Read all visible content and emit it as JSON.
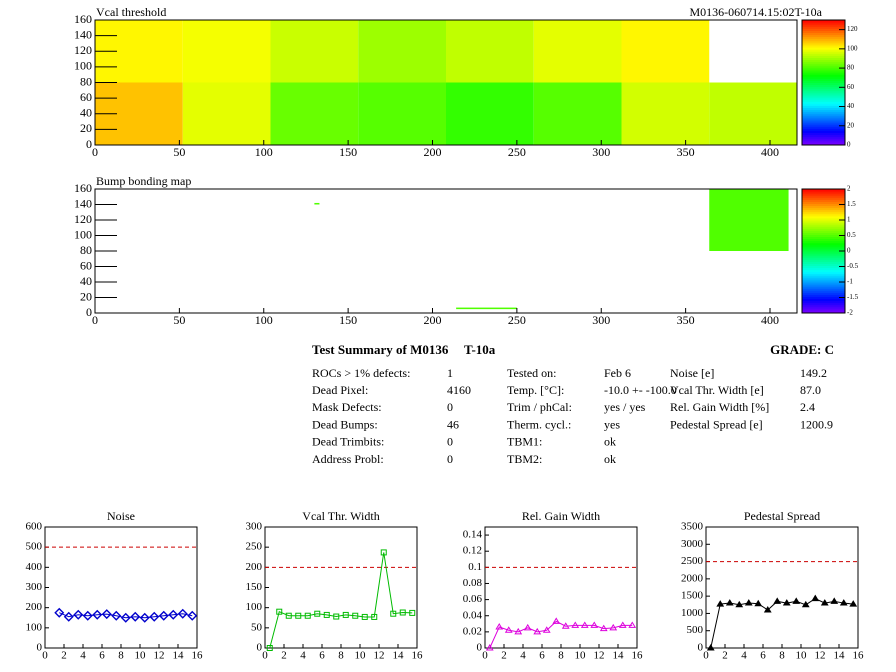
{
  "chart_data": [
    {
      "type": "heatmap",
      "title": "Vcal threshold",
      "subtitle": "M0136-060714.15:02T-10a",
      "xlim": [
        0,
        416
      ],
      "xticks": [
        0,
        50,
        100,
        150,
        200,
        250,
        300,
        350,
        400
      ],
      "ylim": [
        0,
        160
      ],
      "yticks": [
        0,
        20,
        40,
        60,
        80,
        100,
        120,
        140,
        160
      ],
      "zlim": [
        0,
        130
      ],
      "zticks": [
        0,
        20,
        40,
        60,
        80,
        100,
        120
      ],
      "cells": [
        {
          "x0": 0,
          "x1": 52,
          "y0": 0,
          "y1": 80,
          "value": 108
        },
        {
          "x0": 52,
          "x1": 104,
          "y0": 0,
          "y1": 80,
          "value": 98
        },
        {
          "x0": 104,
          "x1": 156,
          "y0": 0,
          "y1": 80,
          "value": 84
        },
        {
          "x0": 156,
          "x1": 208,
          "y0": 0,
          "y1": 80,
          "value": 82
        },
        {
          "x0": 208,
          "x1": 260,
          "y0": 0,
          "y1": 80,
          "value": 78
        },
        {
          "x0": 260,
          "x1": 312,
          "y0": 0,
          "y1": 80,
          "value": 82
        },
        {
          "x0": 312,
          "x1": 364,
          "y0": 0,
          "y1": 80,
          "value": 96
        },
        {
          "x0": 364,
          "x1": 416,
          "y0": 0,
          "y1": 80,
          "value": 94
        },
        {
          "x0": 0,
          "x1": 52,
          "y0": 80,
          "y1": 160,
          "value": 102
        },
        {
          "x0": 52,
          "x1": 104,
          "y0": 80,
          "y1": 160,
          "value": 100
        },
        {
          "x0": 104,
          "x1": 156,
          "y0": 80,
          "y1": 160,
          "value": 95
        },
        {
          "x0": 156,
          "x1": 208,
          "y0": 80,
          "y1": 160,
          "value": 90
        },
        {
          "x0": 208,
          "x1": 260,
          "y0": 80,
          "y1": 160,
          "value": 94
        },
        {
          "x0": 260,
          "x1": 312,
          "y0": 80,
          "y1": 160,
          "value": 98
        },
        {
          "x0": 312,
          "x1": 364,
          "y0": 80,
          "y1": 160,
          "value": 102
        }
      ]
    },
    {
      "type": "heatmap",
      "title": "Bump bonding map",
      "xlim": [
        0,
        416
      ],
      "xticks": [
        0,
        50,
        100,
        150,
        200,
        250,
        300,
        350,
        400
      ],
      "ylim": [
        0,
        160
      ],
      "yticks": [
        0,
        20,
        40,
        60,
        80,
        100,
        120,
        140,
        160
      ],
      "zlim": [
        -2,
        2
      ],
      "zticks": [
        -2,
        -1.5,
        -1,
        -0.5,
        0,
        0.5,
        1,
        1.5,
        2
      ],
      "cells": [
        {
          "x0": 364,
          "x1": 411,
          "y0": 80,
          "y1": 160,
          "value": 0.5
        },
        {
          "x0": 130,
          "x1": 133,
          "y0": 140,
          "y1": 142,
          "value": 0.5
        },
        {
          "x0": 214,
          "x1": 250,
          "y0": 5,
          "y1": 7,
          "value": 0.5
        }
      ]
    },
    {
      "type": "line",
      "title": "Noise",
      "xlim": [
        0,
        16
      ],
      "xticks": [
        0,
        2,
        4,
        6,
        8,
        10,
        12,
        14,
        16
      ],
      "ylim": [
        0,
        600
      ],
      "yticks": [
        0,
        100,
        200,
        300,
        400,
        500,
        600
      ],
      "threshold": 500,
      "x": [
        1.5,
        2.5,
        3.5,
        4.5,
        5.5,
        6.5,
        7.5,
        8.5,
        9.5,
        10.5,
        11.5,
        12.5,
        13.5,
        14.5,
        15.5
      ],
      "values": [
        175,
        155,
        165,
        160,
        165,
        168,
        160,
        150,
        155,
        150,
        155,
        160,
        165,
        170,
        160
      ],
      "color": "#0000cc",
      "marker": "diamond"
    },
    {
      "type": "line",
      "title": "Vcal Thr. Width",
      "xlim": [
        0,
        16
      ],
      "xticks": [
        0,
        2,
        4,
        6,
        8,
        10,
        12,
        14,
        16
      ],
      "ylim": [
        0,
        300
      ],
      "yticks": [
        0,
        50,
        100,
        150,
        200,
        250,
        300
      ],
      "threshold": 200,
      "x": [
        0.5,
        1.5,
        2.5,
        3.5,
        4.5,
        5.5,
        6.5,
        7.5,
        8.5,
        9.5,
        10.5,
        11.5,
        12.5,
        13.5,
        14.5,
        15.5
      ],
      "values": [
        0,
        90,
        80,
        80,
        80,
        85,
        82,
        78,
        82,
        80,
        77,
        77,
        237,
        85,
        88,
        87
      ],
      "color": "#00bb00",
      "marker": "square"
    },
    {
      "type": "line",
      "title": "Rel. Gain Width",
      "xlim": [
        0,
        16
      ],
      "xticks": [
        0,
        2,
        4,
        6,
        8,
        10,
        12,
        14,
        16
      ],
      "ylim": [
        0,
        0.15
      ],
      "yticks": [
        0,
        0.02,
        0.04,
        0.06,
        0.08,
        0.1,
        0.12,
        0.14
      ],
      "threshold": 0.1,
      "x": [
        0.5,
        1.5,
        2.5,
        3.5,
        4.5,
        5.5,
        6.5,
        7.5,
        8.5,
        9.5,
        10.5,
        11.5,
        12.5,
        13.5,
        14.5,
        15.5
      ],
      "values": [
        0,
        0.026,
        0.022,
        0.02,
        0.025,
        0.02,
        0.022,
        0.033,
        0.027,
        0.028,
        0.028,
        0.028,
        0.024,
        0.025,
        0.028,
        0.028
      ],
      "color": "#dd00dd",
      "marker": "triangle"
    },
    {
      "type": "line",
      "title": "Pedestal Spread",
      "xlim": [
        0,
        16
      ],
      "xticks": [
        0,
        2,
        4,
        6,
        8,
        10,
        12,
        14,
        16
      ],
      "ylim": [
        0,
        3500
      ],
      "yticks": [
        0,
        500,
        1000,
        1500,
        2000,
        2500,
        3000,
        3500
      ],
      "threshold": 2500,
      "x": [
        0.5,
        1.5,
        2.5,
        3.5,
        4.5,
        5.5,
        6.5,
        7.5,
        8.5,
        9.5,
        10.5,
        11.5,
        12.5,
        13.5,
        14.5,
        15.5
      ],
      "values": [
        0,
        1270,
        1300,
        1250,
        1300,
        1280,
        1100,
        1350,
        1300,
        1350,
        1250,
        1430,
        1300,
        1350,
        1300,
        1270
      ],
      "color": "#000000",
      "marker": "star"
    }
  ],
  "summary": {
    "title": "Test Summary of M0136",
    "test": "T-10a",
    "grade": "GRADE:  C",
    "columns": [
      [
        [
          "ROCs > 1% defects:",
          "1"
        ],
        [
          "Dead Pixel:",
          "4160"
        ],
        [
          "Mask Defects:",
          "0"
        ],
        [
          "Dead Bumps:",
          "46"
        ],
        [
          "Dead Trimbits:",
          "0"
        ],
        [
          "Address Probl:",
          "0"
        ]
      ],
      [
        [
          "Tested on:",
          "Feb 6"
        ],
        [
          "Temp. [°C]:",
          "-10.0 +- -100.0"
        ],
        [
          "Trim / phCal:",
          "yes / yes"
        ],
        [
          "Therm. cycl.:",
          "yes"
        ],
        [
          "TBM1:",
          "ok"
        ],
        [
          "TBM2:",
          "ok"
        ]
      ],
      [
        [
          "Noise [e]",
          "149.2"
        ],
        [
          "Vcal Thr. Width [e]",
          "87.0"
        ],
        [
          "Rel. Gain Width [%]",
          "2.4"
        ],
        [
          "Pedestal Spread [e]",
          "1200.9"
        ]
      ]
    ]
  }
}
